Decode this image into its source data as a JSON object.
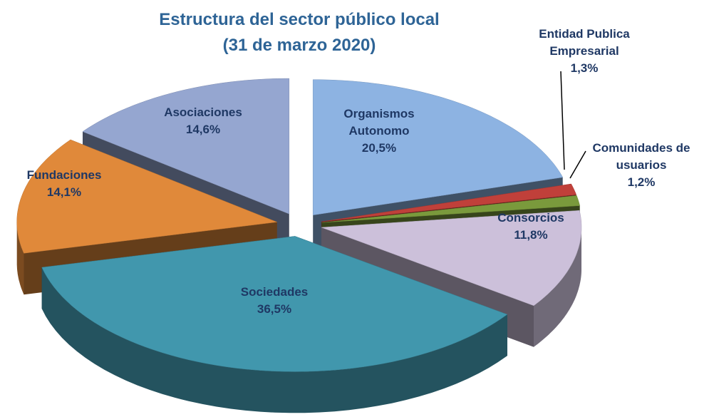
{
  "chart_data": {
    "type": "pie3d",
    "title": "Estructura del sector público local",
    "subtitle": "(31 de marzo 2020)",
    "categories": [
      "Organismos Autonomo",
      "Entidad Publica Empresarial",
      "Comunidades de usuarios",
      "Consorcios",
      "Sociedades",
      "Fundaciones",
      "Asociaciones"
    ],
    "values": [
      20.5,
      1.3,
      1.2,
      11.8,
      36.5,
      14.1,
      14.6
    ],
    "value_labels": [
      "20,5%",
      "1,3%",
      "1,2%",
      "11,8%",
      "36,5%",
      "14,1%",
      "14,6%"
    ],
    "colors": [
      "#8db3e2",
      "#c0403a",
      "#7a9a3c",
      "#ccc0da",
      "#4197ad",
      "#e0893a",
      "#95a6d0"
    ]
  }
}
